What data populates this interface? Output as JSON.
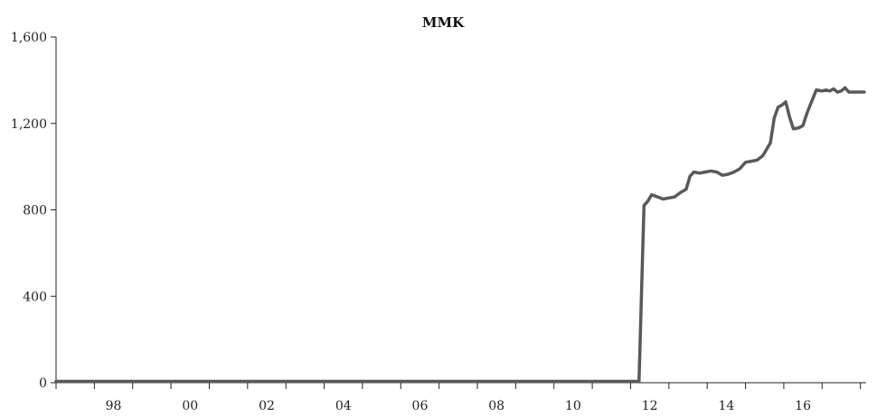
{
  "chart_data": {
    "type": "line",
    "title": "MMK",
    "xlabel": "",
    "ylabel": "",
    "xlim": [
      1996.5,
      2017.65
    ],
    "ylim": [
      0,
      1600
    ],
    "yticks": [
      0,
      400,
      800,
      1200,
      1600
    ],
    "ytick_labels": [
      "0",
      "400",
      "800",
      "1,200",
      "1,600"
    ],
    "xticks": [
      1998,
      2000,
      2002,
      2004,
      2006,
      2008,
      2010,
      2012,
      2014,
      2016
    ],
    "xtick_labels": [
      "98",
      "00",
      "02",
      "04",
      "06",
      "08",
      "10",
      "12",
      "14",
      "16"
    ],
    "grid": false,
    "legend": "none",
    "colors": {
      "line": "#595959",
      "axis": "#222222"
    },
    "series": [
      {
        "x": [
          1996.5,
          2000,
          2004,
          2008,
          2011.7,
          2011.72,
          2011.85,
          2011.95,
          2012.05,
          2012.2,
          2012.35,
          2012.5,
          2012.65,
          2012.8,
          2012.95,
          2013.05,
          2013.15,
          2013.3,
          2013.45,
          2013.6,
          2013.75,
          2013.9,
          2014.05,
          2014.2,
          2014.35,
          2014.5,
          2014.65,
          2014.8,
          2014.95,
          2015.05,
          2015.15,
          2015.25,
          2015.35,
          2015.45,
          2015.55,
          2015.65,
          2015.75,
          2015.9,
          2016.0,
          2016.1,
          2016.2,
          2016.35,
          2016.5,
          2016.6,
          2016.7,
          2016.8,
          2016.9,
          2017.0,
          2017.1,
          2017.2,
          2017.3,
          2017.4,
          2017.5,
          2017.6
        ],
        "values": [
          6,
          6,
          6,
          6,
          6,
          6,
          820,
          840,
          870,
          860,
          850,
          855,
          860,
          880,
          895,
          955,
          975,
          970,
          975,
          980,
          975,
          960,
          965,
          975,
          990,
          1020,
          1025,
          1030,
          1050,
          1080,
          1110,
          1225,
          1275,
          1285,
          1300,
          1230,
          1175,
          1180,
          1190,
          1245,
          1290,
          1355,
          1350,
          1355,
          1350,
          1360,
          1345,
          1350,
          1365,
          1345,
          1345,
          1345,
          1345,
          1345
        ]
      }
    ]
  }
}
